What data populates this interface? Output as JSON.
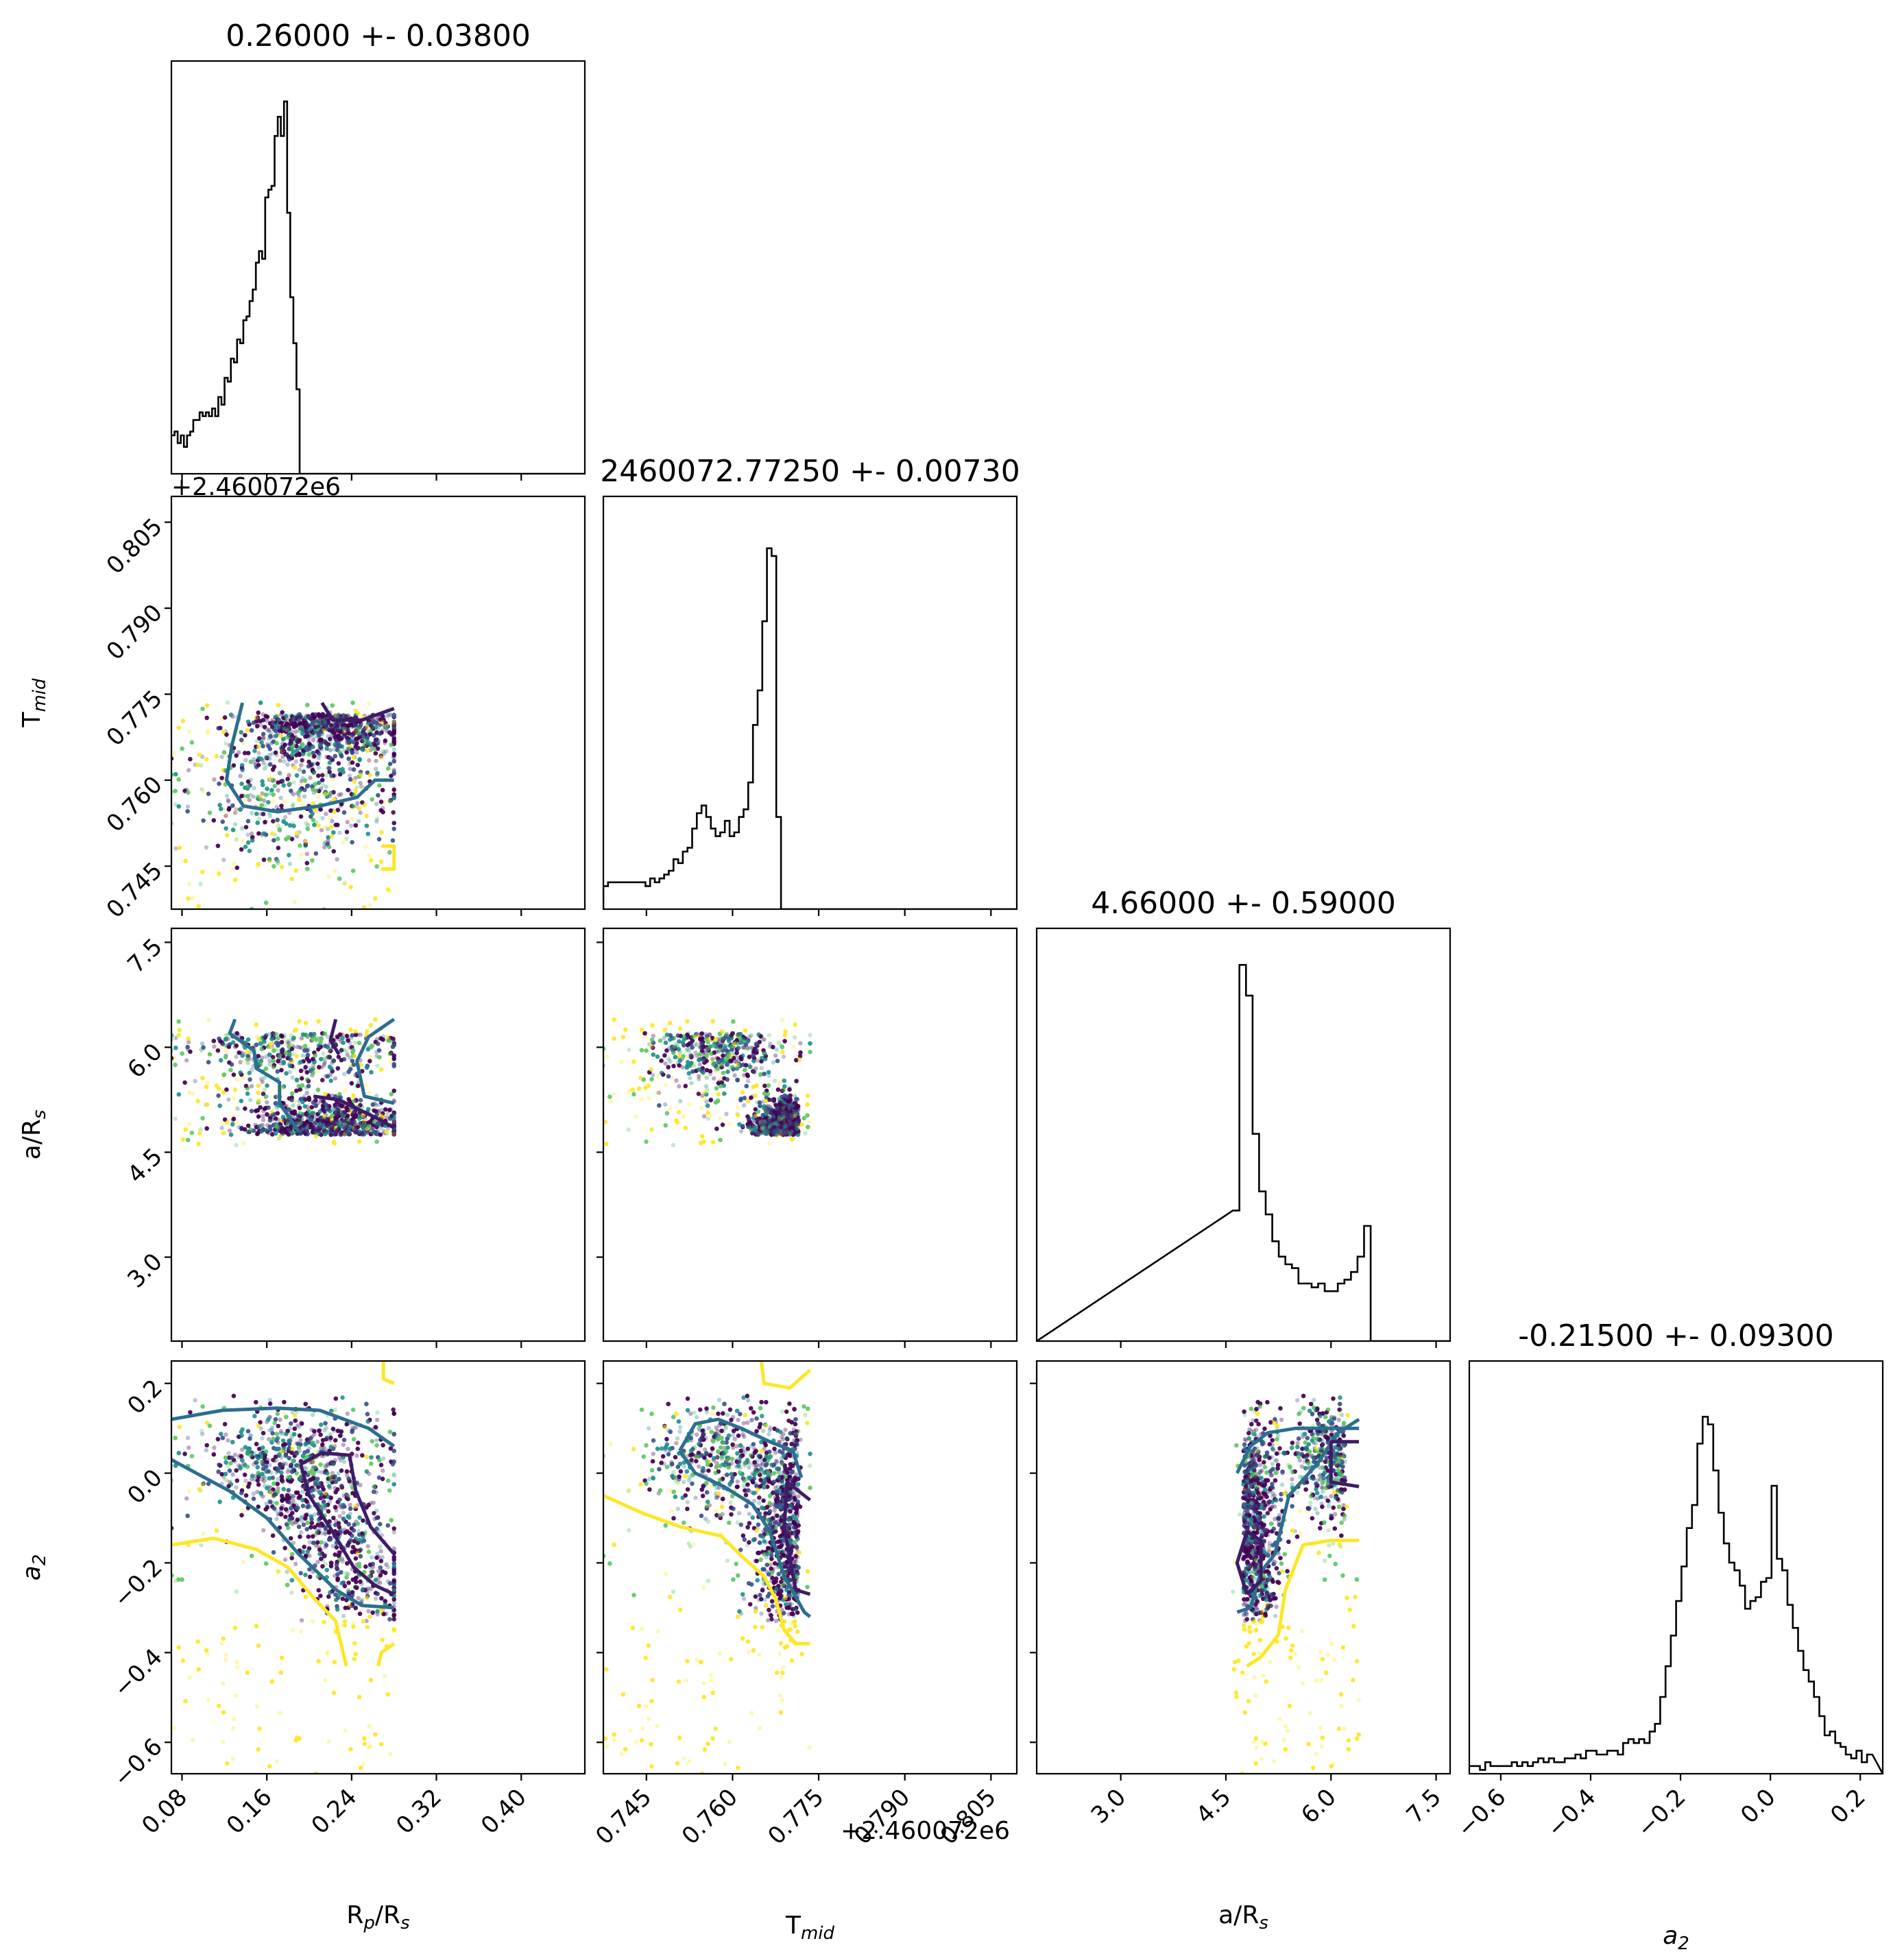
{
  "chart_data": {
    "type": "scatter",
    "chart_kind": "corner plot (posterior samples with 1D histograms and 2D density contours)",
    "parameters": [
      {
        "key": "rp",
        "label_main": "R",
        "label_sub": "p",
        "label_tail": "/R",
        "label_sub2": "s",
        "range": [
          0.07,
          0.46
        ],
        "ticks": [
          0.08,
          0.16,
          0.24,
          0.32,
          0.4
        ],
        "tick_labels": [
          "0.08",
          "0.16",
          "0.24",
          "0.32",
          "0.40"
        ],
        "title": "0.26000 +- 0.03800",
        "offset_text": ""
      },
      {
        "key": "tmid",
        "label_main": "T",
        "label_sub": "mid",
        "label_tail": "",
        "label_sub2": "",
        "range": [
          0.7375,
          0.8095
        ],
        "ticks": [
          0.745,
          0.76,
          0.775,
          0.79,
          0.805
        ],
        "tick_labels": [
          "0.745",
          "0.760",
          "0.775",
          "0.790",
          "0.805"
        ],
        "title": "2460072.77250 +- 0.00730",
        "offset_text": "+2.460072e6"
      },
      {
        "key": "ars",
        "label_main": "a/R",
        "label_sub": "s",
        "label_tail": "",
        "label_sub2": "",
        "range": [
          1.8,
          7.7
        ],
        "ticks": [
          3.0,
          4.5,
          6.0,
          7.5
        ],
        "tick_labels": [
          "3.0",
          "4.5",
          "6.0",
          "7.5"
        ],
        "title": "4.66000 +- 0.59000",
        "offset_text": ""
      },
      {
        "key": "a2",
        "label_main": "a",
        "label_sub": "2",
        "label_tail": "",
        "label_sub2": "",
        "range": [
          -0.67,
          0.25
        ],
        "ticks": [
          -0.6,
          -0.4,
          -0.2,
          0.0,
          0.2
        ],
        "tick_labels": [
          "−0.6",
          "−0.4",
          "−0.2",
          "0.0",
          "0.2"
        ],
        "title": "-0.21500 +- 0.09300",
        "offset_text": ""
      }
    ],
    "histograms": {
      "rp": {
        "edges_start": 0.07,
        "bin_width": 0.00295,
        "counts": [
          0.1,
          0.11,
          0.08,
          0.1,
          0.07,
          0.1,
          0.11,
          0.14,
          0.14,
          0.16,
          0.15,
          0.16,
          0.15,
          0.17,
          0.15,
          0.2,
          0.18,
          0.25,
          0.24,
          0.3,
          0.29,
          0.35,
          0.34,
          0.4,
          0.41,
          0.45,
          0.48,
          0.55,
          0.58,
          0.56,
          0.72,
          0.74,
          0.75,
          0.88,
          0.93,
          0.88,
          0.97,
          0.68,
          0.46,
          0.34,
          0.22,
          0.0
        ]
      },
      "tmid": {
        "edges_start": 0.7375,
        "bin_width": 0.000814,
        "counts": [
          0.06,
          0.07,
          0.07,
          0.07,
          0.07,
          0.07,
          0.07,
          0.07,
          0.07,
          0.06,
          0.08,
          0.07,
          0.08,
          0.09,
          0.1,
          0.13,
          0.12,
          0.15,
          0.16,
          0.21,
          0.25,
          0.27,
          0.24,
          0.21,
          0.19,
          0.2,
          0.23,
          0.19,
          0.2,
          0.24,
          0.26,
          0.33,
          0.48,
          0.57,
          0.75,
          0.94,
          0.92,
          0.24,
          0.0
        ]
      },
      "ars": {
        "edges_start": 4.6,
        "bin_width": 0.0936,
        "counts": [
          0.34,
          0.98,
          0.9,
          0.54,
          0.39,
          0.33,
          0.26,
          0.22,
          0.2,
          0.19,
          0.15,
          0.15,
          0.14,
          0.15,
          0.13,
          0.13,
          0.15,
          0.16,
          0.18,
          0.22,
          0.3,
          0.0
        ]
      },
      "a2": {
        "edges_start": -0.67,
        "bin_width": 0.0118,
        "counts": [
          0.02,
          0.02,
          0.01,
          0.03,
          0.02,
          0.02,
          0.02,
          0.02,
          0.03,
          0.02,
          0.03,
          0.02,
          0.03,
          0.04,
          0.03,
          0.04,
          0.03,
          0.03,
          0.04,
          0.04,
          0.05,
          0.04,
          0.06,
          0.06,
          0.05,
          0.05,
          0.06,
          0.06,
          0.05,
          0.08,
          0.09,
          0.08,
          0.09,
          0.08,
          0.11,
          0.13,
          0.2,
          0.28,
          0.36,
          0.45,
          0.54,
          0.64,
          0.7,
          0.86,
          0.93,
          0.91,
          0.79,
          0.68,
          0.6,
          0.55,
          0.53,
          0.49,
          0.43,
          0.45,
          0.46,
          0.5,
          0.51,
          0.75,
          0.56,
          0.53,
          0.44,
          0.38,
          0.32,
          0.27,
          0.24,
          0.2,
          0.15,
          0.1,
          0.11,
          0.08,
          0.07,
          0.05,
          0.04,
          0.06,
          0.03,
          0.05
        ]
      }
    },
    "samples": {
      "rp_range": [
        0.07,
        0.28
      ],
      "tmid_range": [
        0.7375,
        0.7735
      ],
      "ars_range": [
        4.6,
        6.4
      ],
      "a2_range": [
        -0.67,
        0.25
      ]
    },
    "contours": [
      {
        "panel": "tmid_vs_rp",
        "color": "#2c6f8f",
        "points": [
          [
            0.137,
            0.7735
          ],
          [
            0.127,
            0.766
          ],
          [
            0.122,
            0.76
          ],
          [
            0.138,
            0.7555
          ],
          [
            0.17,
            0.7545
          ],
          [
            0.21,
            0.7555
          ],
          [
            0.245,
            0.757
          ],
          [
            0.262,
            0.76
          ],
          [
            0.28,
            0.76
          ]
        ]
      },
      {
        "panel": "tmid_vs_rp",
        "color": "#3d1c67",
        "points": [
          [
            0.212,
            0.7735
          ],
          [
            0.222,
            0.7705
          ],
          [
            0.25,
            0.7705
          ],
          [
            0.28,
            0.7725
          ]
        ]
      },
      {
        "panel": "tmid_vs_rp",
        "color": "#fde725",
        "points": [
          [
            0.268,
            0.7485
          ],
          [
            0.28,
            0.7485
          ],
          [
            0.28,
            0.7445
          ],
          [
            0.268,
            0.7445
          ]
        ]
      },
      {
        "panel": "ars_vs_rp",
        "color": "#2c6f8f",
        "points": [
          [
            0.13,
            6.4
          ],
          [
            0.125,
            6.2
          ],
          [
            0.148,
            5.95
          ],
          [
            0.15,
            5.7
          ],
          [
            0.172,
            5.5
          ],
          [
            0.172,
            5.2
          ],
          [
            0.19,
            4.8
          ]
        ]
      },
      {
        "panel": "ars_vs_rp",
        "color": "#2c6f8f",
        "points": [
          [
            0.28,
            6.4
          ],
          [
            0.256,
            6.15
          ],
          [
            0.245,
            5.8
          ],
          [
            0.252,
            5.3
          ],
          [
            0.28,
            5.2
          ]
        ]
      },
      {
        "panel": "ars_vs_rp",
        "color": "#3d1c67",
        "points": [
          [
            0.225,
            6.4
          ],
          [
            0.22,
            6.1
          ],
          [
            0.228,
            5.9
          ]
        ]
      },
      {
        "panel": "ars_vs_rp",
        "color": "#3d1c67",
        "points": [
          [
            0.204,
            5.3
          ],
          [
            0.228,
            5.25
          ],
          [
            0.262,
            5.0
          ],
          [
            0.28,
            4.85
          ]
        ]
      },
      {
        "panel": "a2_vs_rp",
        "color": "#2c6f8f",
        "points": [
          [
            0.07,
            0.12
          ],
          [
            0.118,
            0.14
          ],
          [
            0.17,
            0.145
          ],
          [
            0.21,
            0.14
          ],
          [
            0.256,
            0.1
          ],
          [
            0.28,
            0.06
          ]
        ]
      },
      {
        "panel": "a2_vs_rp",
        "color": "#2c6f8f",
        "points": [
          [
            0.07,
            0.03
          ],
          [
            0.125,
            -0.04
          ],
          [
            0.16,
            -0.1
          ],
          [
            0.19,
            -0.18
          ],
          [
            0.225,
            -0.26
          ],
          [
            0.25,
            -0.295
          ],
          [
            0.28,
            -0.3
          ]
        ]
      },
      {
        "panel": "a2_vs_rp",
        "color": "#3d1c67",
        "points": [
          [
            0.192,
            0.02
          ],
          [
            0.212,
            0.045
          ],
          [
            0.238,
            0.04
          ],
          [
            0.244,
            -0.04
          ],
          [
            0.258,
            -0.12
          ],
          [
            0.28,
            -0.18
          ]
        ]
      },
      {
        "panel": "a2_vs_rp",
        "color": "#3d1c67",
        "points": [
          [
            0.192,
            0.02
          ],
          [
            0.2,
            -0.05
          ],
          [
            0.222,
            -0.13
          ],
          [
            0.242,
            -0.21
          ],
          [
            0.262,
            -0.25
          ],
          [
            0.28,
            -0.27
          ]
        ]
      },
      {
        "panel": "a2_vs_rp",
        "color": "#fde725",
        "points": [
          [
            0.07,
            -0.16
          ],
          [
            0.11,
            -0.145
          ],
          [
            0.15,
            -0.17
          ],
          [
            0.18,
            -0.21
          ],
          [
            0.205,
            -0.28
          ],
          [
            0.225,
            -0.33
          ],
          [
            0.235,
            -0.43
          ]
        ]
      },
      {
        "panel": "a2_vs_rp",
        "color": "#fde725",
        "points": [
          [
            0.265,
            -0.43
          ],
          [
            0.268,
            -0.4
          ],
          [
            0.28,
            -0.38
          ]
        ]
      },
      {
        "panel": "a2_vs_rp",
        "color": "#fde725",
        "points": [
          [
            0.27,
            0.25
          ],
          [
            0.27,
            0.21
          ],
          [
            0.28,
            0.2
          ]
        ]
      },
      {
        "panel": "a2_vs_tmid",
        "color": "#2c6f8f",
        "points": [
          [
            0.7508,
            0.05
          ],
          [
            0.7535,
            0.11
          ],
          [
            0.7575,
            0.12
          ],
          [
            0.7615,
            0.1
          ],
          [
            0.7665,
            0.07
          ],
          [
            0.7705,
            0.05
          ],
          [
            0.772,
            -0.01
          ]
        ]
      },
      {
        "panel": "a2_vs_tmid",
        "color": "#2c6f8f",
        "points": [
          [
            0.7508,
            0.05
          ],
          [
            0.7535,
            0.0
          ],
          [
            0.7585,
            -0.03
          ],
          [
            0.7635,
            -0.07
          ],
          [
            0.7665,
            -0.13
          ],
          [
            0.769,
            -0.23
          ],
          [
            0.7725,
            -0.31
          ],
          [
            0.7735,
            -0.32
          ]
        ]
      },
      {
        "panel": "a2_vs_tmid",
        "color": "#3d1c67",
        "points": [
          [
            0.7695,
            -0.02
          ],
          [
            0.7735,
            -0.06
          ]
        ]
      },
      {
        "panel": "a2_vs_tmid",
        "color": "#3d1c67",
        "points": [
          [
            0.7695,
            -0.02
          ],
          [
            0.769,
            -0.12
          ],
          [
            0.771,
            -0.26
          ],
          [
            0.7735,
            -0.27
          ]
        ]
      },
      {
        "panel": "a2_vs_tmid",
        "color": "#fde725",
        "points": [
          [
            0.7375,
            -0.05
          ],
          [
            0.7445,
            -0.09
          ],
          [
            0.751,
            -0.12
          ],
          [
            0.758,
            -0.14
          ],
          [
            0.762,
            -0.19
          ],
          [
            0.7655,
            -0.23
          ],
          [
            0.7675,
            -0.28
          ],
          [
            0.769,
            -0.35
          ],
          [
            0.771,
            -0.38
          ],
          [
            0.7735,
            -0.38
          ]
        ]
      },
      {
        "panel": "a2_vs_tmid",
        "color": "#fde725",
        "points": [
          [
            0.765,
            0.25
          ],
          [
            0.7655,
            0.2
          ],
          [
            0.77,
            0.19
          ],
          [
            0.7735,
            0.23
          ]
        ]
      },
      {
        "panel": "a2_vs_ars",
        "color": "#2c6f8f",
        "points": [
          [
            4.66,
            -0.31
          ],
          [
            4.85,
            -0.3
          ],
          [
            5.0,
            -0.22
          ],
          [
            5.2,
            -0.18
          ],
          [
            5.4,
            -0.05
          ],
          [
            5.8,
            0.02
          ],
          [
            6.1,
            0.09
          ],
          [
            6.4,
            0.12
          ]
        ]
      },
      {
        "panel": "a2_vs_ars",
        "color": "#2c6f8f",
        "points": [
          [
            4.66,
            0.0
          ],
          [
            4.85,
            0.06
          ],
          [
            5.1,
            0.09
          ],
          [
            5.5,
            0.1
          ],
          [
            6.0,
            0.1
          ],
          [
            6.4,
            0.1
          ]
        ]
      },
      {
        "panel": "a2_vs_ars",
        "color": "#3d1c67",
        "points": [
          [
            4.8,
            -0.27
          ],
          [
            4.66,
            -0.2
          ],
          [
            4.8,
            -0.13
          ],
          [
            5.0,
            -0.15
          ],
          [
            5.0,
            -0.24
          ],
          [
            4.8,
            -0.27
          ]
        ]
      },
      {
        "panel": "a2_vs_ars",
        "color": "#3d1c67",
        "points": [
          [
            6.4,
            0.07
          ],
          [
            6.0,
            0.07
          ],
          [
            6.0,
            -0.02
          ],
          [
            6.4,
            -0.03
          ]
        ]
      },
      {
        "panel": "a2_vs_ars",
        "color": "#fde725",
        "points": [
          [
            4.8,
            -0.43
          ],
          [
            5.0,
            -0.41
          ],
          [
            5.25,
            -0.36
          ],
          [
            5.35,
            -0.26
          ],
          [
            5.6,
            -0.16
          ],
          [
            6.0,
            -0.15
          ],
          [
            6.4,
            -0.15
          ]
        ]
      }
    ]
  }
}
